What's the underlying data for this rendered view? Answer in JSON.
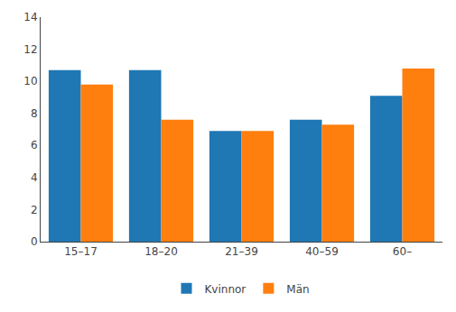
{
  "chart_data": {
    "type": "bar",
    "categories": [
      "15–17",
      "18–20",
      "21–39",
      "40–59",
      "60–"
    ],
    "series": [
      {
        "name": "Kvinnor",
        "values": [
          10.7,
          10.7,
          6.9,
          7.6,
          9.1
        ]
      },
      {
        "name": "Män",
        "values": [
          9.8,
          7.6,
          6.9,
          7.3,
          10.8
        ]
      }
    ],
    "ylim": [
      0,
      14
    ],
    "yticks": [
      0,
      2,
      4,
      6,
      8,
      10,
      12,
      14
    ],
    "grid": false,
    "legend": "bottom"
  }
}
